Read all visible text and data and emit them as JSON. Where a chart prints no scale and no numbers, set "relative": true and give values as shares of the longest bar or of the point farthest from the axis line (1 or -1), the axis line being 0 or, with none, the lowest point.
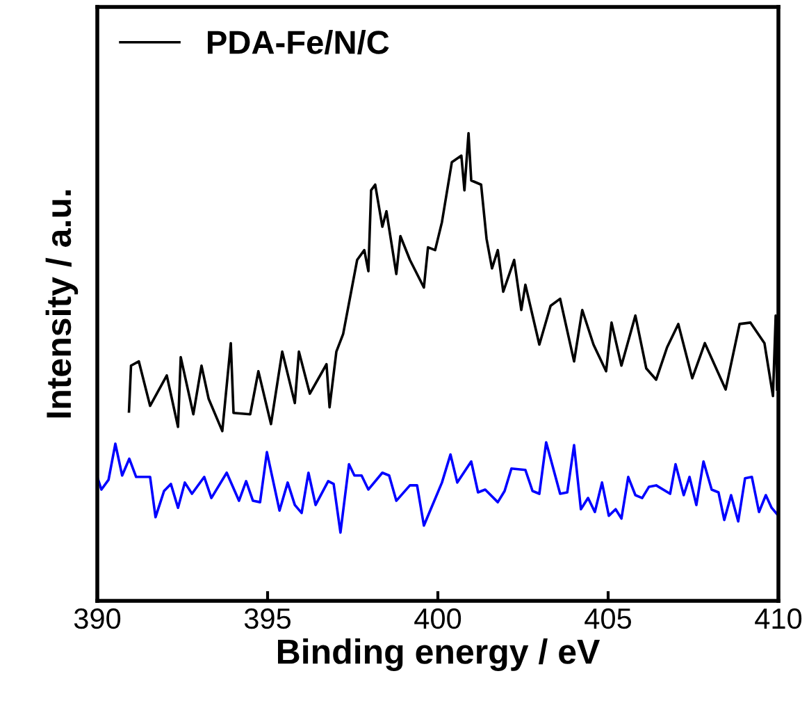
{
  "chart_data": {
    "type": "line",
    "relative": true,
    "xlabel": "Binding energy / eV",
    "ylabel": "Intensity / a.u.",
    "xlim": [
      390,
      410
    ],
    "xticks": [
      390,
      395,
      400,
      405,
      410
    ],
    "tick_labels": "x",
    "legend": "top left",
    "grid": false,
    "marker": "none",
    "line_style": "solid",
    "series": [
      {
        "color": "#0000ff",
        "x": [
          390.0,
          390.12,
          390.33,
          390.53,
          390.73,
          390.94,
          391.14,
          391.55,
          391.71,
          391.96,
          392.16,
          392.37,
          392.57,
          392.78,
          393.14,
          393.35,
          393.8,
          394.16,
          394.37,
          394.57,
          394.78,
          394.98,
          395.35,
          395.59,
          395.8,
          396.0,
          396.2,
          396.41,
          396.78,
          396.94,
          397.14,
          397.39,
          397.55,
          397.76,
          397.96,
          398.37,
          398.57,
          398.78,
          399.18,
          399.39,
          399.59,
          400.12,
          400.37,
          400.57,
          400.98,
          401.18,
          401.39,
          401.76,
          401.96,
          402.16,
          402.57,
          402.78,
          402.98,
          403.18,
          403.59,
          403.8,
          404.0,
          404.2,
          404.41,
          404.61,
          404.82,
          405.02,
          405.22,
          405.39,
          405.59,
          405.8,
          406.0,
          406.2,
          406.41,
          406.82,
          406.98,
          407.22,
          407.39,
          407.59,
          407.8,
          408.04,
          408.24,
          408.41,
          408.61,
          408.82,
          409.02,
          409.22,
          409.43,
          409.63,
          409.8,
          410.0
        ],
        "values": [
          0.265,
          0.238,
          0.259,
          0.336,
          0.268,
          0.304,
          0.265,
          0.265,
          0.179,
          0.235,
          0.25,
          0.199,
          0.253,
          0.229,
          0.265,
          0.22,
          0.274,
          0.214,
          0.256,
          0.214,
          0.211,
          0.318,
          0.193,
          0.253,
          0.205,
          0.188,
          0.274,
          0.205,
          0.256,
          0.25,
          0.146,
          0.292,
          0.268,
          0.268,
          0.238,
          0.274,
          0.268,
          0.214,
          0.247,
          0.247,
          0.161,
          0.253,
          0.313,
          0.253,
          0.298,
          0.232,
          0.238,
          0.211,
          0.235,
          0.283,
          0.28,
          0.235,
          0.229,
          0.339,
          0.229,
          0.232,
          0.333,
          0.196,
          0.22,
          0.19,
          0.253,
          0.182,
          0.196,
          0.176,
          0.265,
          0.226,
          0.22,
          0.244,
          0.247,
          0.229,
          0.292,
          0.226,
          0.265,
          0.205,
          0.298,
          0.238,
          0.232,
          0.173,
          0.226,
          0.17,
          0.262,
          0.265,
          0.19,
          0.226,
          0.199,
          0.182
        ]
      },
      {
        "name": "PDA-Fe/N/C",
        "color": "#000000",
        "x": [
          390.93,
          390.99,
          391.22,
          391.55,
          392.04,
          392.37,
          392.45,
          392.82,
          393.06,
          393.27,
          393.67,
          393.92,
          394.0,
          394.49,
          394.73,
          395.1,
          395.43,
          395.8,
          395.92,
          396.24,
          396.73,
          396.82,
          397.02,
          397.22,
          397.43,
          397.63,
          397.84,
          397.96,
          398.04,
          398.16,
          398.37,
          398.49,
          398.78,
          398.9,
          399.18,
          399.59,
          399.71,
          399.92,
          400.12,
          400.41,
          400.69,
          400.78,
          400.9,
          400.98,
          401.27,
          401.43,
          401.59,
          401.76,
          401.92,
          402.24,
          402.45,
          402.57,
          402.98,
          403.31,
          403.59,
          404.0,
          404.24,
          404.57,
          404.94,
          405.1,
          405.39,
          405.8,
          406.12,
          406.41,
          406.73,
          407.06,
          407.47,
          407.84,
          408.45,
          408.86,
          409.18,
          409.59,
          409.84,
          409.92,
          409.96
        ],
        "values": [
          0.405,
          0.503,
          0.512,
          0.417,
          0.482,
          0.372,
          0.521,
          0.399,
          0.503,
          0.432,
          0.363,
          0.551,
          0.402,
          0.399,
          0.491,
          0.378,
          0.533,
          0.423,
          0.533,
          0.443,
          0.506,
          0.414,
          0.533,
          0.571,
          0.652,
          0.729,
          0.75,
          0.705,
          0.878,
          0.89,
          0.8,
          0.833,
          0.699,
          0.78,
          0.729,
          0.67,
          0.756,
          0.75,
          0.81,
          0.938,
          0.952,
          0.878,
          1.0,
          0.899,
          0.89,
          0.774,
          0.711,
          0.75,
          0.661,
          0.729,
          0.622,
          0.676,
          0.548,
          0.631,
          0.646,
          0.512,
          0.622,
          0.548,
          0.491,
          0.595,
          0.503,
          0.61,
          0.497,
          0.473,
          0.542,
          0.592,
          0.476,
          0.551,
          0.452,
          0.592,
          0.595,
          0.551,
          0.438,
          0.61,
          0.452
        ]
      }
    ]
  }
}
